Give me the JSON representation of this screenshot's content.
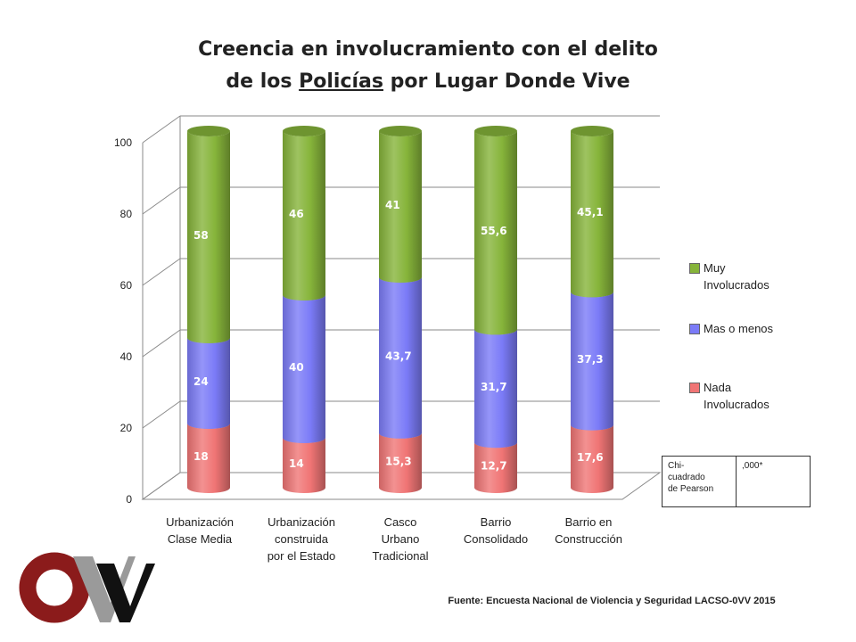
{
  "title": {
    "line1": "Creencia en involucramiento con el delito",
    "line2_before": "de los ",
    "line2_underlined": "Policías",
    "line2_after": " por Lugar Donde Vive"
  },
  "chart_data": {
    "type": "bar",
    "stacked": true,
    "style": "3d-cylinder",
    "ylim": [
      0,
      100
    ],
    "yticks": [
      "0",
      "20",
      "40",
      "60",
      "80",
      "100"
    ],
    "grid": true,
    "legend_position": "right",
    "categories": [
      [
        "Urbanización",
        "Clase Media"
      ],
      [
        "Urbanización",
        "construida",
        "por el Estado"
      ],
      [
        "Casco",
        "Urbano",
        "Tradicional"
      ],
      [
        "Barrio",
        "Consolidado"
      ],
      [
        "Barrio en",
        "Construcción"
      ]
    ],
    "series": [
      {
        "name": "Nada Involucrados",
        "legend_lines": [
          "Nada",
          "Involucrados"
        ],
        "color": "#f07575",
        "values": [
          18,
          14,
          15.3,
          12.7,
          17.6
        ],
        "labels": [
          "18",
          "14",
          "15,3",
          "12,7",
          "17,6"
        ]
      },
      {
        "name": "Mas o menos",
        "legend_lines": [
          "Mas o menos"
        ],
        "color": "#7b7bf7",
        "values": [
          24,
          40,
          43.7,
          31.7,
          37.3
        ],
        "labels": [
          "24",
          "40",
          "43,7",
          "31,7",
          "37,3"
        ]
      },
      {
        "name": "Muy Involucrados",
        "legend_lines": [
          "Muy",
          "Involucrados"
        ],
        "color": "#86b43a",
        "values": [
          58,
          46,
          41,
          55.6,
          45.1
        ],
        "labels": [
          "58",
          "46",
          "41",
          "55,6",
          "45,1"
        ]
      }
    ]
  },
  "stats_table": {
    "label": "Chi-cuadrado de Pearson",
    "label_lines": [
      "Chi-",
      "cuadrado",
      "de Pearson"
    ],
    "value": ",000*"
  },
  "source": "Fuente: Encuesta Nacional de Violencia y Seguridad LACSO-0VV 2015",
  "colors": {
    "logo_red": "#8b1b1b",
    "logo_gray": "#9a9a9a",
    "logo_black": "#111111"
  }
}
